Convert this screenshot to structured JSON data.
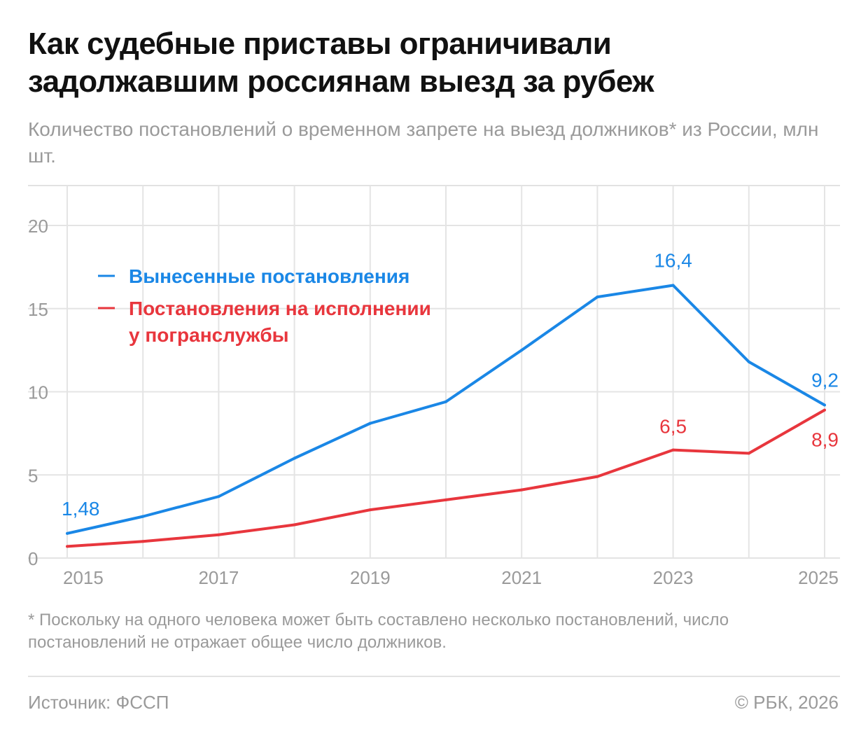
{
  "title": "Как судебные приставы ограничивали задолжавшим россиянам выезд за рубеж",
  "subtitle": "Количество постановлений о временном запрете на выезд должников* из России, млн шт.",
  "footnote": "* Поскольку на одного человека может быть составлено несколько постановлений, число постановлений не отражает общее число должников.",
  "source": "Источник: ФССП",
  "copyright": "© РБК, 2026",
  "chart_data": {
    "type": "line",
    "x": [
      2015,
      2016,
      2017,
      2018,
      2019,
      2020,
      2021,
      2022,
      2023,
      2024,
      2025
    ],
    "x_tick_labels": [
      "2015",
      "2017",
      "2019",
      "2021",
      "2023",
      "2025"
    ],
    "y_tick_labels": [
      "0",
      "5",
      "10",
      "15",
      "20"
    ],
    "ylim": [
      0,
      22.4
    ],
    "grid": true,
    "legend_placement": "top-left",
    "series": [
      {
        "name": "Вынесенные постановления",
        "color": "#1a87e6",
        "values": [
          1.48,
          2.5,
          3.7,
          6.0,
          8.1,
          9.4,
          12.5,
          15.7,
          16.4,
          11.8,
          9.2
        ],
        "labels": {
          "2015": "1,48",
          "2023": "16,4",
          "2025": "9,2"
        }
      },
      {
        "name": "Постановления на исполнении у погранслужбы",
        "color": "#e8363d",
        "values": [
          0.7,
          1.0,
          1.4,
          2.0,
          2.9,
          3.5,
          4.1,
          4.9,
          6.5,
          6.3,
          8.9
        ],
        "labels": {
          "2023": "6,5",
          "2025": "8,9"
        }
      }
    ]
  }
}
